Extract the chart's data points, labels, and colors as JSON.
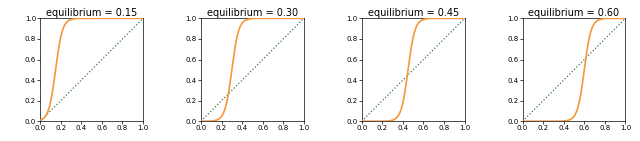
{
  "equilibria": [
    0.15,
    0.3,
    0.45,
    0.6
  ],
  "figsize": [
    6.4,
    1.41
  ],
  "dpi": 100,
  "blue_color": "#5b9bd5",
  "orange_color": "#f5973a",
  "green_color": "#3a7a3a",
  "title_fontsize": 7.0,
  "lw_blue": 0.45,
  "lw_orange": 1.2,
  "lw_green": 0.9
}
